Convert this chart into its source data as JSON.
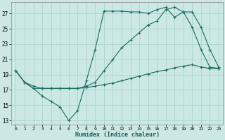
{
  "xlabel": "Humidex (Indice chaleur)",
  "background_color": "#cce8e5",
  "grid_color": "#aad4d0",
  "line_color": "#1a6b5f",
  "xlim": [
    -0.5,
    23.5
  ],
  "ylim": [
    12.5,
    28.5
  ],
  "xticks": [
    0,
    1,
    2,
    3,
    4,
    5,
    6,
    7,
    8,
    9,
    10,
    11,
    12,
    13,
    14,
    15,
    16,
    17,
    18,
    19,
    20,
    21,
    22,
    23
  ],
  "yticks": [
    13,
    15,
    17,
    19,
    21,
    23,
    25,
    27
  ],
  "line1_x": [
    0,
    1,
    2,
    3,
    4,
    5,
    6,
    7,
    8,
    9,
    10,
    11,
    12,
    13,
    14,
    15,
    16,
    17,
    18,
    19,
    20,
    21,
    22,
    23
  ],
  "line1_y": [
    19.5,
    18.0,
    17.2,
    16.2,
    15.5,
    14.8,
    13.0,
    14.3,
    18.2,
    22.3,
    27.3,
    27.3,
    27.3,
    27.2,
    27.2,
    27.0,
    27.5,
    27.8,
    26.5,
    27.2,
    25.2,
    22.3,
    20.0,
    19.8
  ],
  "line2_x": [
    0,
    1,
    2,
    3,
    4,
    5,
    6,
    7,
    8,
    9,
    10,
    11,
    12,
    13,
    14,
    15,
    16,
    17,
    18,
    19,
    20,
    21,
    22,
    23
  ],
  "line2_y": [
    19.5,
    18.0,
    17.5,
    17.2,
    17.2,
    17.2,
    17.2,
    17.2,
    17.5,
    18.0,
    19.5,
    21.0,
    22.5,
    23.5,
    24.5,
    25.5,
    26.0,
    27.5,
    27.8,
    27.2,
    27.2,
    25.2,
    22.3,
    20.0
  ],
  "line3_x": [
    0,
    1,
    2,
    3,
    4,
    5,
    6,
    7,
    8,
    9,
    10,
    11,
    12,
    13,
    14,
    15,
    16,
    17,
    18,
    19,
    20,
    21,
    22,
    23
  ],
  "line3_y": [
    19.5,
    18.0,
    17.2,
    17.2,
    17.2,
    17.2,
    17.2,
    17.2,
    17.3,
    17.5,
    17.7,
    17.9,
    18.2,
    18.5,
    18.8,
    19.1,
    19.4,
    19.6,
    19.9,
    20.1,
    20.3,
    20.0,
    19.8,
    19.8
  ]
}
